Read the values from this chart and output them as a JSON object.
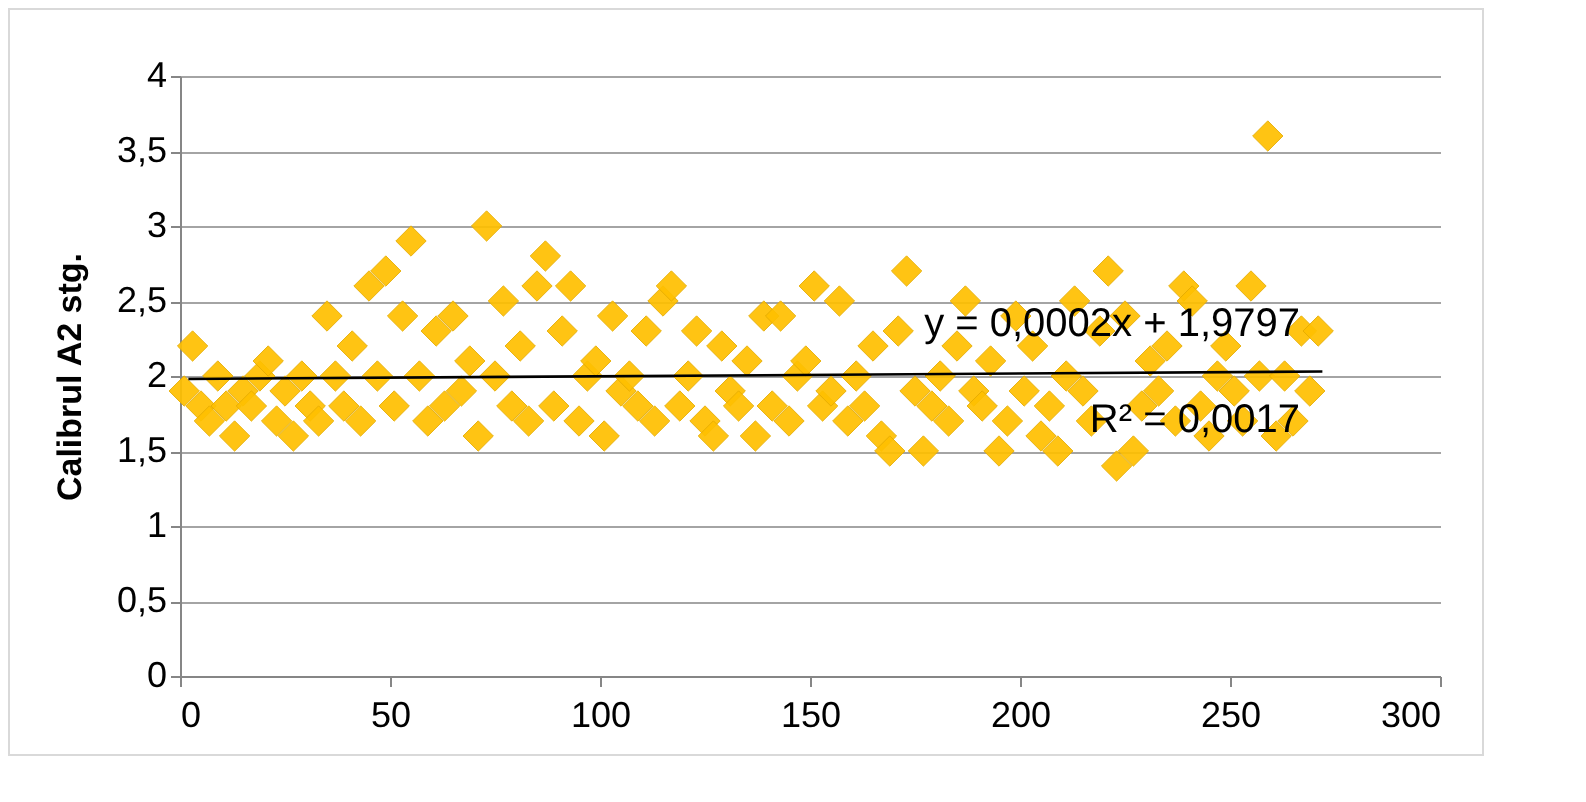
{
  "chart_data": {
    "type": "scatter",
    "ylabel": "Calibrul A2 stg.",
    "grid": "y",
    "xlim": [
      0,
      300
    ],
    "xticks": [
      0,
      50,
      100,
      150,
      200,
      250,
      300
    ],
    "ylim": [
      0,
      4
    ],
    "yticks": [
      0,
      {
        "value": 0.5,
        "label": "0,5"
      },
      1,
      {
        "value": 1.5,
        "label": "1,5"
      },
      2,
      {
        "value": 2.5,
        "label": "2,5"
      },
      3,
      {
        "value": 3.5,
        "label": "3,5"
      },
      4
    ],
    "annotations": [
      "y = 0,0002x + 1,9797",
      "R² = 0,0017"
    ],
    "series": [
      {
        "marker": "diamond",
        "color": "#ffc000",
        "x": [
          1,
          3,
          5,
          7,
          9,
          11,
          13,
          15,
          17,
          19,
          21,
          23,
          25,
          27,
          29,
          31,
          33,
          35,
          37,
          39,
          41,
          43,
          45,
          47,
          49,
          51,
          53,
          55,
          57,
          59,
          61,
          63,
          65,
          67,
          69,
          71,
          73,
          75,
          77,
          79,
          81,
          83,
          85,
          87,
          89,
          91,
          93,
          95,
          97,
          99,
          101,
          103,
          105,
          107,
          109,
          111,
          113,
          115,
          117,
          119,
          121,
          123,
          125,
          127,
          129,
          131,
          133,
          135,
          137,
          139,
          141,
          143,
          145,
          147,
          149,
          151,
          153,
          155,
          157,
          159,
          161,
          163,
          165,
          167,
          169,
          171,
          173,
          175,
          177,
          179,
          181,
          183,
          185,
          187,
          189,
          191,
          193,
          195,
          197,
          199,
          201,
          203,
          205,
          207,
          209,
          211,
          213,
          215,
          217,
          219,
          221,
          223,
          225,
          227,
          229,
          231,
          233,
          235,
          237,
          239,
          241,
          243,
          245,
          247,
          249,
          251,
          253,
          255,
          257,
          259,
          261,
          263,
          265,
          267,
          269,
          271
        ],
        "values": [
          1.9,
          2.2,
          1.8,
          1.7,
          2.0,
          1.8,
          1.6,
          1.9,
          1.8,
          2.0,
          2.1,
          1.7,
          1.9,
          1.6,
          2.0,
          1.8,
          1.7,
          2.4,
          2.0,
          1.8,
          2.2,
          1.7,
          2.6,
          2.0,
          2.7,
          1.8,
          2.4,
          2.9,
          2.0,
          1.7,
          2.3,
          1.8,
          2.4,
          1.9,
          2.1,
          1.6,
          3.0,
          2.0,
          2.5,
          1.8,
          2.2,
          1.7,
          2.6,
          2.8,
          1.8,
          2.3,
          2.6,
          1.7,
          2.0,
          2.1,
          1.6,
          2.4,
          1.9,
          2.0,
          1.8,
          2.3,
          1.7,
          2.5,
          2.6,
          1.8,
          2.0,
          2.3,
          1.7,
          1.6,
          2.2,
          1.9,
          1.8,
          2.1,
          1.6,
          2.4,
          1.8,
          2.4,
          1.7,
          2.0,
          2.1,
          2.6,
          1.8,
          1.9,
          2.5,
          1.7,
          2.0,
          1.8,
          2.2,
          1.6,
          1.5,
          2.3,
          2.7,
          1.9,
          1.5,
          1.8,
          2.0,
          1.7,
          2.2,
          2.5,
          1.9,
          1.8,
          2.1,
          1.5,
          1.7,
          2.4,
          1.9,
          2.2,
          1.6,
          1.8,
          1.5,
          2.0,
          2.5,
          1.9,
          1.7,
          2.3,
          2.7,
          1.4,
          2.4,
          1.5,
          1.8,
          2.1,
          1.9,
          2.2,
          1.7,
          2.6,
          2.5,
          1.8,
          1.6,
          2.0,
          2.2,
          1.9,
          1.7,
          2.6,
          2.0,
          3.6,
          1.6,
          2.0,
          1.7,
          2.3,
          1.9,
          2.3
        ]
      },
      {
        "type": "line",
        "color": "#000000",
        "x": [
          2,
          272
        ],
        "values": [
          1.98,
          2.03
        ]
      }
    ]
  }
}
